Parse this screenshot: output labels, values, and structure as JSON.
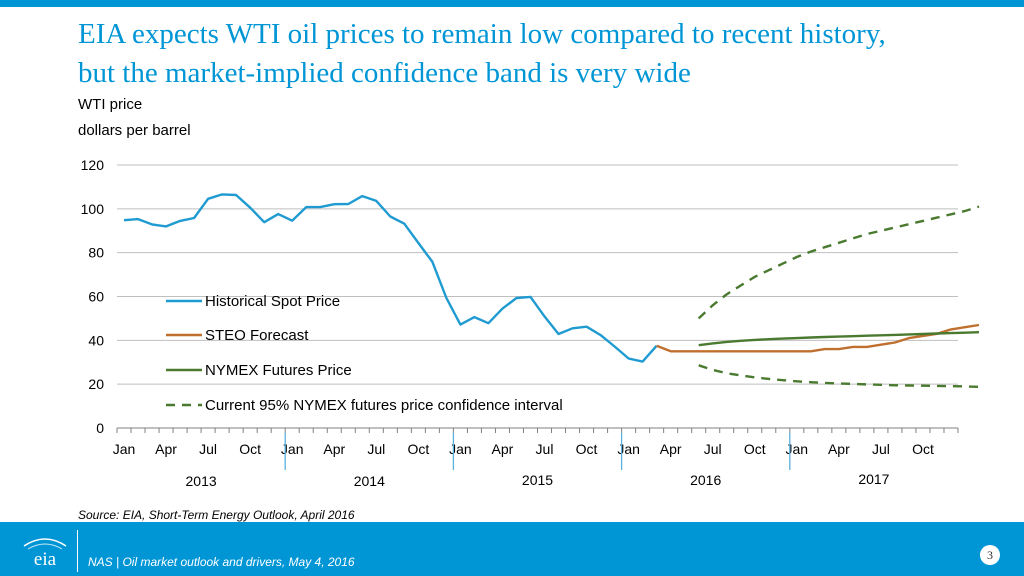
{
  "slide": {
    "title_line1": "EIA expects WTI oil prices to remain low compared to recent history,",
    "title_line2": "but the market-implied confidence band is very wide",
    "subtitle_line1": "WTI price",
    "subtitle_line2": "dollars per barrel",
    "source": "Source: EIA, Short-Term Energy Outlook, April 2016",
    "footer_text": "NAS | Oil market outlook and drivers, May 4, 2016",
    "page_number": "3",
    "logo_text": "eia",
    "accent_color": "#0096d6"
  },
  "chart_data": {
    "type": "line",
    "title": "",
    "ylabel": "WTI price, dollars per barrel",
    "ylim": [
      0,
      120
    ],
    "yticks": [
      0,
      20,
      40,
      60,
      80,
      100,
      120
    ],
    "grid": true,
    "x_start": "2013-01",
    "month_labels": [
      "Jan",
      "Apr",
      "Jul",
      "Oct",
      "Jan",
      "Apr",
      "Jul",
      "Oct",
      "Jan",
      "Apr",
      "Jul",
      "Oct",
      "Jan",
      "Apr",
      "Jul",
      "Oct",
      "Jan",
      "Apr",
      "Jul",
      "Oct"
    ],
    "year_labels": [
      "2013",
      "2014",
      "2015",
      "2016",
      "2017"
    ],
    "series": [
      {
        "name": "Historical Spot Price",
        "color": "#1f9bd1",
        "style": "solid",
        "start_index": 0,
        "values": [
          94.8,
          95.3,
          92.9,
          92.0,
          94.5,
          95.8,
          104.6,
          106.6,
          106.3,
          100.5,
          93.9,
          97.6,
          94.6,
          100.8,
          100.8,
          102.1,
          102.2,
          105.8,
          103.6,
          96.5,
          93.2,
          84.4,
          75.8,
          59.3,
          47.2,
          50.6,
          47.8,
          54.5,
          59.3,
          59.8,
          50.9,
          42.9,
          45.5,
          46.2,
          42.4,
          37.2,
          31.7,
          30.3,
          37.5
        ]
      },
      {
        "name": "STEO Forecast",
        "color": "#c0702e",
        "style": "solid",
        "start_index": 38,
        "values": [
          37.5,
          35.0,
          35.0,
          35.0,
          35.0,
          35.0,
          35.0,
          35.0,
          35.0,
          35.0,
          35.0,
          35.0,
          36.0,
          36.0,
          37.0,
          37.0,
          38.0,
          39.0,
          41.0,
          42.0,
          43.0,
          45.0,
          46.0,
          47.0
        ]
      },
      {
        "name": "NYMEX Futures Price",
        "color": "#4a7a2f",
        "style": "solid",
        "start_index": 41,
        "values": [
          37.8,
          38.6,
          39.3,
          39.8,
          40.2,
          40.5,
          40.8,
          41.0,
          41.3,
          41.5,
          41.7,
          41.9,
          42.1,
          42.3,
          42.5,
          42.7,
          42.9,
          43.1,
          43.3,
          43.5,
          43.7
        ]
      },
      {
        "name": "Current 95% NYMEX futures price confidence interval",
        "color": "#4a7a2f",
        "style": "dashed",
        "start_index": 41,
        "upper": [
          50.0,
          56.0,
          61.0,
          65.0,
          69.0,
          72.0,
          75.0,
          78.0,
          80.5,
          82.5,
          84.5,
          86.5,
          88.5,
          90.0,
          91.5,
          93.0,
          94.5,
          96.0,
          97.5,
          99.0,
          101.0
        ],
        "lower": [
          28.6,
          26.5,
          25.0,
          24.0,
          23.1,
          22.4,
          21.8,
          21.3,
          20.9,
          20.6,
          20.3,
          20.1,
          19.9,
          19.7,
          19.5,
          19.4,
          19.3,
          19.2,
          19.1,
          19.0,
          18.8
        ]
      }
    ]
  }
}
